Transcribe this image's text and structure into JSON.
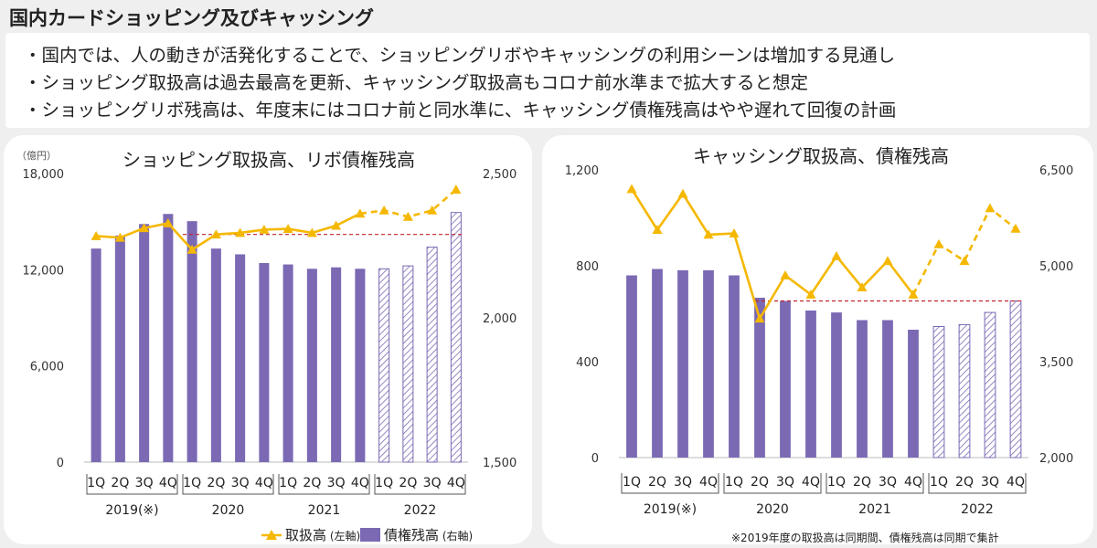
{
  "page_title": "国内カードショッピング及びキャッシング",
  "bullets": [
    "・国内では、人の動きが活発化することで、ショッピングリボやキャッシングの利用シーンは増加する見通し",
    "・ショッピング取扱高は過去最高を更新、キャッシング取扱高もコロナ前水準まで拡大すると想定",
    "・ショッピングリボ残高は、年度末にはコロナ前と同水準に、キャッシング債権残高はやや遅れて回復の計画"
  ],
  "footnote": "※2019年度の取扱高は同期間、債権残高は同期で集計",
  "colors": {
    "bar": "#7b69b4",
    "line": "#f5b800",
    "ref_line": "#c0242c",
    "hatch": "#7b69b4"
  },
  "chart_data": [
    {
      "type": "bar",
      "title": "ショッピング取扱高、リボ債権残高",
      "unit_label": "（億円）",
      "quarters": [
        "1Q",
        "2Q",
        "3Q",
        "4Q",
        "1Q",
        "2Q",
        "3Q",
        "4Q",
        "1Q",
        "2Q",
        "3Q",
        "4Q",
        "1Q",
        "2Q",
        "3Q",
        "4Q"
      ],
      "years": [
        "2019(※)",
        "2020",
        "2021",
        "2022"
      ],
      "left_axis": {
        "min": 0,
        "max": 18000,
        "ticks": [
          "0",
          "6,000",
          "12,000",
          "18,000"
        ],
        "tick_values": [
          0,
          6000,
          12000,
          18000
        ]
      },
      "right_axis": {
        "min": 1500,
        "max": 2500,
        "ticks": [
          "1,500",
          "2,000",
          "2,500"
        ],
        "tick_values": [
          1500,
          2000,
          2500
        ]
      },
      "series": [
        {
          "name": "債権残高",
          "axis": "right",
          "kind": "bar",
          "values": [
            2240,
            2285,
            2325,
            2360,
            2335,
            2240,
            2220,
            2190,
            2185,
            2170,
            2175,
            2170,
            2170,
            2180,
            2245,
            2365
          ],
          "forecast_from": 12
        },
        {
          "name": "取扱高",
          "axis": "left",
          "kind": "line",
          "values": [
            14100,
            14000,
            14600,
            14900,
            13250,
            14200,
            14300,
            14500,
            14550,
            14300,
            14750,
            15500,
            15700,
            15300,
            15700,
            17000
          ],
          "forecast_from": 12
        }
      ],
      "reference_value": 14200,
      "reference_axis": "left",
      "legend": [
        {
          "label": "取扱高",
          "suffix": " (左軸)"
        },
        {
          "label": "債権残高",
          "suffix": " (右軸)"
        }
      ]
    },
    {
      "type": "bar",
      "title": "キャッシング取扱高、債権残高",
      "quarters": [
        "1Q",
        "2Q",
        "3Q",
        "4Q",
        "1Q",
        "2Q",
        "3Q",
        "4Q",
        "1Q",
        "2Q",
        "3Q",
        "4Q",
        "1Q",
        "2Q",
        "3Q",
        "4Q"
      ],
      "years": [
        "2019(※)",
        "2020",
        "2021",
        "2022"
      ],
      "left_axis": {
        "min": 0,
        "max": 1200,
        "ticks": [
          "0",
          "400",
          "800",
          "1,200"
        ],
        "tick_values": [
          0,
          400,
          800,
          1200
        ]
      },
      "right_axis": {
        "min": 2000,
        "max": 6500,
        "ticks": [
          "2,000",
          "3,500",
          "5,000",
          "6,500"
        ],
        "tick_values": [
          2000,
          3500,
          5000,
          6500
        ]
      },
      "series": [
        {
          "name": "債権残高",
          "axis": "right",
          "kind": "bar",
          "values": [
            4850,
            4950,
            4930,
            4930,
            4850,
            4500,
            4450,
            4300,
            4270,
            4150,
            4150,
            4000,
            4050,
            4080,
            4270,
            4450
          ],
          "forecast_from": 12
        },
        {
          "name": "取扱高",
          "axis": "left",
          "kind": "line",
          "values": [
            1120,
            950,
            1100,
            930,
            935,
            580,
            760,
            680,
            840,
            710,
            820,
            680,
            890,
            820,
            1040,
            955
          ],
          "forecast_from": 12
        }
      ],
      "reference_value": 4450,
      "reference_axis": "right"
    }
  ]
}
